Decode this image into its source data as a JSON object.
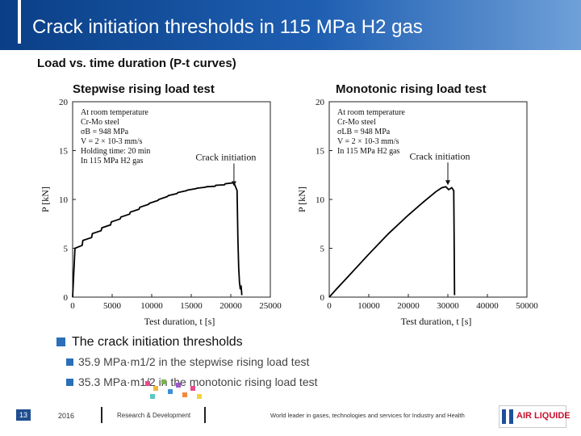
{
  "header": {
    "title": "Crack initiation thresholds in 115 MPa H2 gas"
  },
  "subtitle": "Load vs. time duration (P-t curves)",
  "left_plot_label": "Stepwise rising load test",
  "right_plot_label": "Monotonic rising load test",
  "bullets": {
    "main": "The crack initiation thresholds",
    "items": [
      "35.9 MPa·m1/2 in the stepwise rising load test",
      "35.3 MPa·m1/2 in the monotonic rising load test"
    ]
  },
  "footer": {
    "page_number": "13",
    "year": "2016",
    "department": "Research & Development",
    "tagline": "World leader in gases, technologies and services for Industry and Health",
    "logo_text": "AIR LIQUIDE"
  },
  "colors": {
    "header_dark": "#0a3f86",
    "header_light": "#6fa0d8",
    "bullet": "#2a6fb7",
    "logo_red": "#c8102e",
    "logo_blue": "#1d4f9c"
  },
  "chart_data": [
    {
      "type": "line",
      "xlabel": "Test duration, t [s]",
      "ylabel": "P [kN]",
      "xlim": [
        0,
        25000
      ],
      "ylim": [
        0,
        20
      ],
      "xticks": [
        "0",
        "5000",
        "10000",
        "15000",
        "20000",
        "25000"
      ],
      "yticks": [
        "0",
        "5",
        "10",
        "15",
        "20"
      ],
      "annotation_lines": [
        "At room temperature",
        "Cr-Mo steel",
        "σB = 948 MPa",
        "V = 2 × 10-3 mm/s",
        "Holding time: 20 min",
        "In 115 MPa H2 gas"
      ],
      "arrow_label": "Crack initiation",
      "arrow_target": [
        20400,
        11.2
      ],
      "series": [
        {
          "x": [
            0,
            300,
            1200,
            1300,
            2400,
            2500,
            3600,
            3700,
            4800,
            4900,
            6000,
            6100,
            7200,
            7300,
            8400,
            8500,
            9600,
            9700,
            10800,
            10900,
            12000,
            12100,
            13200,
            13300,
            14400,
            14500,
            15600,
            15700,
            16800,
            16900,
            18000,
            18100,
            19200,
            19300,
            20400,
            20800,
            20900,
            21000,
            21100,
            21200,
            21300,
            21400
          ],
          "y": [
            0,
            5.0,
            5.3,
            5.8,
            6.1,
            6.5,
            6.8,
            7.1,
            7.4,
            7.7,
            8.0,
            8.2,
            8.5,
            8.7,
            9.0,
            9.2,
            9.5,
            9.6,
            9.9,
            10.0,
            10.3,
            10.4,
            10.6,
            10.7,
            10.9,
            10.95,
            11.1,
            11.15,
            11.25,
            11.3,
            11.35,
            11.45,
            11.5,
            11.6,
            11.7,
            10.9,
            6.0,
            3.0,
            1.5,
            0.8,
            1.2,
            0.2
          ]
        }
      ]
    },
    {
      "type": "line",
      "xlabel": "Test duration, t [s]",
      "ylabel": "P [kN]",
      "xlim": [
        0,
        50000
      ],
      "ylim": [
        0,
        20
      ],
      "xticks": [
        "0",
        "10000",
        "20000",
        "30000",
        "40000",
        "50000"
      ],
      "yticks": [
        "0",
        "5",
        "10",
        "15",
        "20"
      ],
      "annotation_lines": [
        "At room temperature",
        "Cr-Mo steel",
        "σLB = 948 MPa",
        "V = 2 × 10-3 mm/s",
        "In 115 MPa H2 gas"
      ],
      "arrow_label": "Crack initiation",
      "arrow_target": [
        30000,
        11.3
      ],
      "series": [
        {
          "x": [
            0,
            2000,
            5000,
            10000,
            15000,
            20000,
            24000,
            27000,
            28500,
            29500,
            30200,
            31000,
            31500,
            31600,
            31700
          ],
          "y": [
            0,
            0.9,
            2.2,
            4.4,
            6.5,
            8.4,
            9.8,
            10.8,
            11.2,
            11.3,
            11.0,
            11.2,
            10.9,
            6.0,
            0.2
          ]
        }
      ]
    }
  ]
}
